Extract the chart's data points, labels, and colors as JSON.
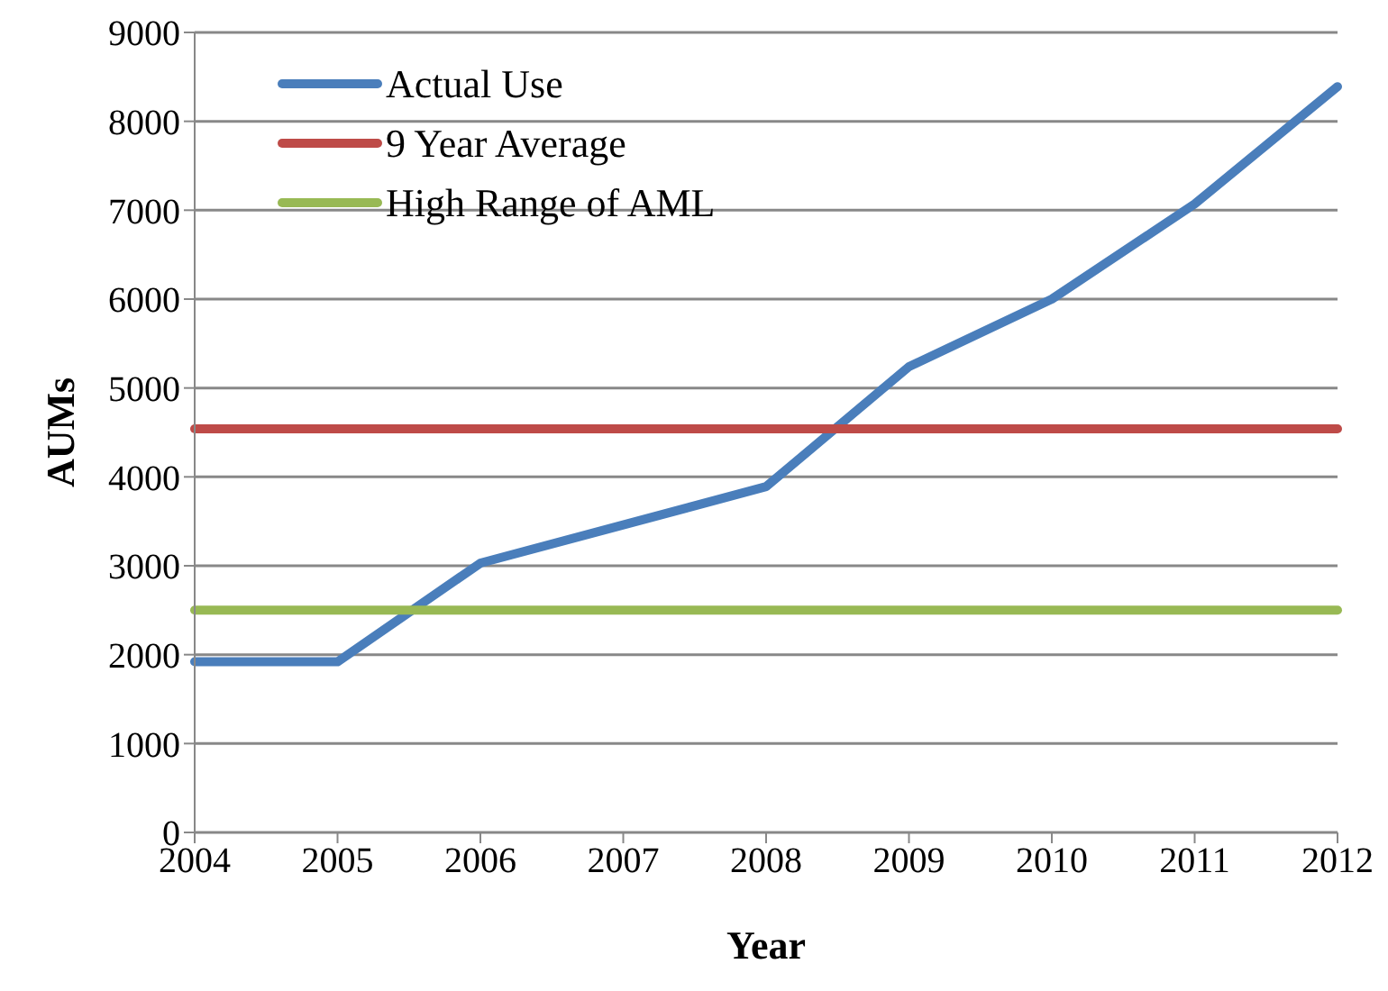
{
  "chart_data": {
    "type": "line",
    "xlabel": "Year",
    "ylabel": "AUMs",
    "categories": [
      "2004",
      "2005",
      "2006",
      "2007",
      "2008",
      "2009",
      "2010",
      "2011",
      "2012"
    ],
    "series": [
      {
        "name": "Actual Use",
        "color": "#4a7ebb",
        "values": [
          1920,
          1920,
          3030,
          3460,
          3890,
          5240,
          6000,
          7070,
          8390
        ]
      },
      {
        "name": "9 Year Average",
        "color": "#be4b48",
        "values": [
          4540,
          4540,
          4540,
          4540,
          4540,
          4540,
          4540,
          4540,
          4540
        ]
      },
      {
        "name": "High Range of AML",
        "color": "#98b954",
        "values": [
          2500,
          2500,
          2500,
          2500,
          2500,
          2500,
          2500,
          2500,
          2500
        ]
      }
    ],
    "ylim": [
      0,
      9000
    ],
    "yticks": [
      0,
      1000,
      2000,
      3000,
      4000,
      5000,
      6000,
      7000,
      8000,
      9000
    ],
    "grid": "y",
    "legend": "top left",
    "marker": "none",
    "line_style": "solid"
  }
}
